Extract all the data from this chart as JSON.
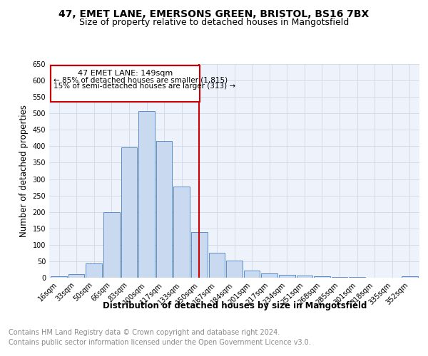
{
  "title1": "47, EMET LANE, EMERSONS GREEN, BRISTOL, BS16 7BX",
  "title2": "Size of property relative to detached houses in Mangotsfield",
  "xlabel": "Distribution of detached houses by size in Mangotsfield",
  "ylabel": "Number of detached properties",
  "footer1": "Contains HM Land Registry data © Crown copyright and database right 2024.",
  "footer2": "Contains public sector information licensed under the Open Government Licence v3.0.",
  "annotation_title": "47 EMET LANE: 149sqm",
  "annotation_line1": "← 85% of detached houses are smaller (1,815)",
  "annotation_line2": "15% of semi-detached houses are larger (313) →",
  "bar_labels": [
    "16sqm",
    "33sqm",
    "50sqm",
    "66sqm",
    "83sqm",
    "100sqm",
    "117sqm",
    "133sqm",
    "150sqm",
    "167sqm",
    "184sqm",
    "201sqm",
    "217sqm",
    "234sqm",
    "251sqm",
    "268sqm",
    "285sqm",
    "301sqm",
    "318sqm",
    "335sqm",
    "352sqm"
  ],
  "bar_values": [
    5,
    10,
    43,
    200,
    397,
    507,
    416,
    277,
    138,
    75,
    52,
    22,
    13,
    8,
    7,
    5,
    2,
    3,
    1,
    0,
    5
  ],
  "bar_color": "#c9d9f0",
  "bar_edge_color": "#5b8cc8",
  "vline_color": "#cc0000",
  "box_edge_color": "#cc0000",
  "ylim": [
    0,
    650
  ],
  "yticks": [
    0,
    50,
    100,
    150,
    200,
    250,
    300,
    350,
    400,
    450,
    500,
    550,
    600,
    650
  ],
  "grid_color": "#d0d8e8",
  "bg_color": "#eef2fb",
  "title_fontsize": 10,
  "subtitle_fontsize": 9,
  "tick_fontsize": 7,
  "label_fontsize": 8.5,
  "footer_fontsize": 7
}
